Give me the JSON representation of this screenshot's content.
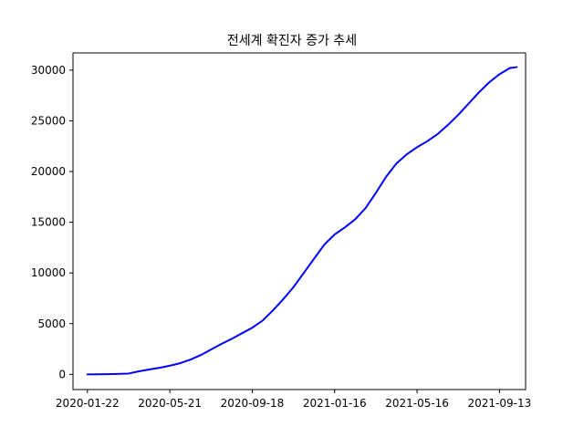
{
  "chart_data": {
    "type": "line",
    "title": "전세계 확진자 증가 추세",
    "xlabel": "",
    "ylabel": "",
    "x_ticks": [
      "2020-01-22",
      "2020-05-21",
      "2020-09-18",
      "2021-01-16",
      "2021-05-16",
      "2021-09-13"
    ],
    "y_ticks": [
      "0",
      "5000",
      "10000",
      "15000",
      "20000",
      "25000",
      "30000"
    ],
    "xlim": [
      "2020-01-01",
      "2021-10-21"
    ],
    "ylim": [
      -1500,
      31700
    ],
    "grid": false,
    "legend": "none",
    "line_color": "#0000ff",
    "series": [
      {
        "x": [
          "2020-01-22",
          "2020-02-21",
          "2020-03-22",
          "2020-04-06",
          "2020-04-21",
          "2020-05-06",
          "2020-05-21",
          "2020-06-05",
          "2020-06-20",
          "2020-07-05",
          "2020-07-20",
          "2020-08-04",
          "2020-08-19",
          "2020-09-03",
          "2020-09-18",
          "2020-10-03",
          "2020-10-18",
          "2020-11-02",
          "2020-11-17",
          "2020-12-02",
          "2020-12-17",
          "2021-01-01",
          "2021-01-16",
          "2021-01-31",
          "2021-02-15",
          "2021-03-02",
          "2021-03-17",
          "2021-04-01",
          "2021-04-16",
          "2021-05-01",
          "2021-05-16",
          "2021-05-31",
          "2021-06-15",
          "2021-06-30",
          "2021-07-15",
          "2021-07-30",
          "2021-08-14",
          "2021-08-29",
          "2021-09-13",
          "2021-09-28",
          "2021-10-08"
        ],
        "values": [
          0,
          20,
          80,
          300,
          480,
          650,
          850,
          1100,
          1450,
          1900,
          2450,
          3000,
          3500,
          4050,
          4600,
          5300,
          6300,
          7400,
          8600,
          10000,
          11400,
          12800,
          13800,
          14500,
          15300,
          16400,
          17900,
          19500,
          20800,
          21700,
          22400,
          23000,
          23700,
          24600,
          25600,
          26700,
          27800,
          28800,
          29600,
          30200,
          30300
        ]
      }
    ]
  }
}
